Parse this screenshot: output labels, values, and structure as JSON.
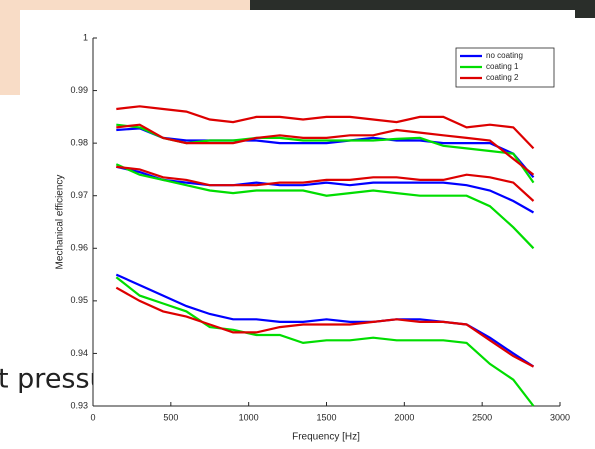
{
  "slide_text": "t pressure",
  "chart_data": {
    "type": "line",
    "xlabel": "Frequency [Hz]",
    "ylabel": "Mechanical efficiency",
    "x": [
      150,
      300,
      450,
      600,
      750,
      900,
      1050,
      1200,
      1350,
      1500,
      1650,
      1800,
      1950,
      2100,
      2250,
      2400,
      2550,
      2700,
      2830
    ],
    "xlim": [
      0,
      3000
    ],
    "xticks": [
      0,
      500,
      1000,
      1500,
      2000,
      2500,
      3000
    ],
    "ylim": [
      0.93,
      1
    ],
    "yticks": [
      0.93,
      0.94,
      0.95,
      0.96,
      0.97,
      0.98,
      0.99,
      1
    ],
    "legend": "upper right",
    "series": [
      {
        "name": "no coating",
        "color": "#0000ff",
        "values": [
          [
            0.9825,
            0.9828,
            0.981,
            0.9805,
            0.9805,
            0.9805,
            0.9805,
            0.98,
            0.98,
            0.98,
            0.9805,
            0.981,
            0.9805,
            0.9805,
            0.98,
            0.98,
            0.98,
            0.978,
            0.9735
          ],
          [
            0.9755,
            0.9745,
            0.973,
            0.9725,
            0.972,
            0.972,
            0.9725,
            0.972,
            0.972,
            0.9725,
            0.972,
            0.9725,
            0.9725,
            0.9725,
            0.9725,
            0.972,
            0.971,
            0.969,
            0.9668
          ],
          [
            0.955,
            0.953,
            0.951,
            0.949,
            0.9475,
            0.9465,
            0.9465,
            0.946,
            0.946,
            0.9465,
            0.946,
            0.946,
            0.9465,
            0.9465,
            0.946,
            0.9455,
            0.943,
            0.94,
            0.9375
          ]
        ]
      },
      {
        "name": "coating 1",
        "color": "#00dd00",
        "values": [
          [
            0.9835,
            0.983,
            0.981,
            0.98,
            0.9805,
            0.9805,
            0.981,
            0.981,
            0.9805,
            0.9805,
            0.9805,
            0.9805,
            0.9808,
            0.981,
            0.9795,
            0.979,
            0.9785,
            0.978,
            0.9725
          ],
          [
            0.976,
            0.974,
            0.973,
            0.972,
            0.971,
            0.9705,
            0.971,
            0.971,
            0.971,
            0.97,
            0.9705,
            0.971,
            0.9705,
            0.97,
            0.97,
            0.97,
            0.968,
            0.964,
            0.96
          ],
          [
            0.9545,
            0.951,
            0.9495,
            0.948,
            0.945,
            0.9445,
            0.9435,
            0.9435,
            0.942,
            0.9425,
            0.9425,
            0.943,
            0.9425,
            0.9425,
            0.9425,
            0.942,
            0.938,
            0.935,
            0.93
          ]
        ]
      },
      {
        "name": "coating 2",
        "color": "#dd0000",
        "values": [
          [
            0.9865,
            0.987,
            0.9865,
            0.986,
            0.9845,
            0.984,
            0.985,
            0.985,
            0.9845,
            0.985,
            0.985,
            0.9845,
            0.984,
            0.985,
            0.985,
            0.983,
            0.9835,
            0.983,
            0.979
          ],
          [
            0.983,
            0.9835,
            0.981,
            0.98,
            0.98,
            0.98,
            0.981,
            0.9815,
            0.981,
            0.981,
            0.9815,
            0.9815,
            0.9825,
            0.982,
            0.9815,
            0.981,
            0.9805,
            0.977,
            0.974
          ],
          [
            0.9755,
            0.975,
            0.9735,
            0.973,
            0.972,
            0.972,
            0.972,
            0.9725,
            0.9725,
            0.973,
            0.973,
            0.9735,
            0.9735,
            0.973,
            0.973,
            0.974,
            0.9735,
            0.9725,
            0.969
          ],
          [
            0.9525,
            0.95,
            0.948,
            0.947,
            0.9455,
            0.944,
            0.944,
            0.945,
            0.9455,
            0.9455,
            0.9455,
            0.946,
            0.9465,
            0.946,
            0.946,
            0.9455,
            0.9425,
            0.9395,
            0.9375
          ]
        ]
      }
    ]
  }
}
